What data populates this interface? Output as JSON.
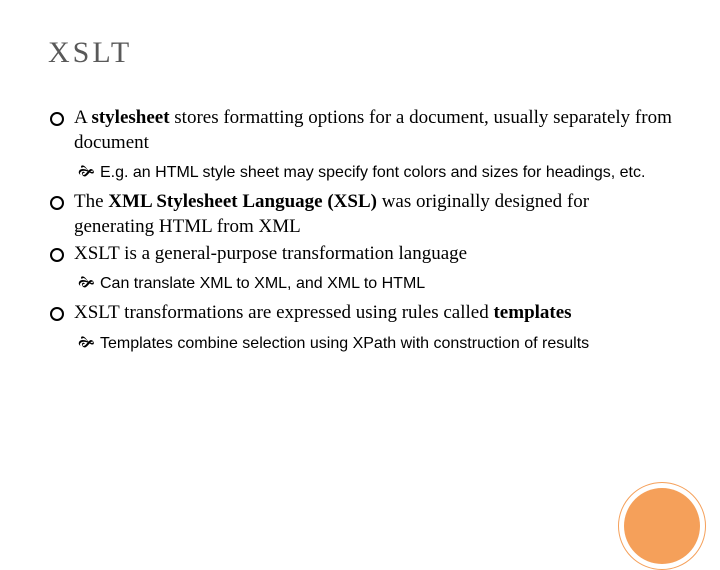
{
  "title": "XSLT",
  "bullets": [
    {
      "prefix": "A ",
      "bold": "stylesheet",
      "suffix": " stores formatting options for a document, usually separately from document",
      "sub": [
        "E.g. an HTML style sheet may specify font colors and sizes for headings, etc."
      ]
    },
    {
      "prefix": "The ",
      "bold": "XML Stylesheet Language (XSL)",
      "suffix": " was originally designed for generating HTML from XML",
      "sub": []
    },
    {
      "prefix": "",
      "bold": "",
      "suffix": "XSLT is a general-purpose transformation language",
      "sub": [
        "Can translate XML to XML, and XML to HTML"
      ]
    },
    {
      "prefix": "XSLT transformations are expressed using rules called ",
      "bold": "templates",
      "suffix": "",
      "sub": [
        "Templates combine selection using XPath with construction of results"
      ]
    }
  ],
  "colors": {
    "title": "#595959",
    "accent": "#f5a05a",
    "text": "#000000",
    "background": "#ffffff"
  },
  "fonts": {
    "title_size": 30,
    "body_size": 19,
    "sub_size": 16
  }
}
